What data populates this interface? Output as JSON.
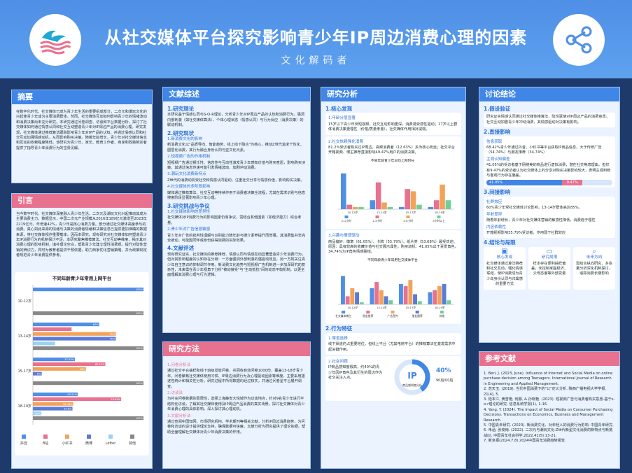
{
  "poster": {
    "title": "从社交媒体平台探究影响青少年IP周边消费心理的因素",
    "subtitle": "文化解码者"
  },
  "abstract": {
    "heading": "摘要",
    "text": "在数字化时代，社交媒体已成为青少年生活的重要组成部分，二次元和潮玩文化的兴起使青少年成为主要消费群体。然而，社交媒体互动如何影响青少年的情绪波动和消费决策尚未充分研究。本研究通过问卷调查、访谈和平台数据分析，探讨了社交媒体如何通过情感认同和社交互动塑造青少年对IP周边产品的消费心理。研究发现，社交媒体通过推荐算法跟踪影响青少年对IP产品的认知，并通过情感认同和社交互动加强情感动机，从而影响购买决策。随着年龄增长，青少年对社交媒体信息和互动的依赖程度降低。该研究为青少年、家长、教育工作者、商家和政策制定者提供了指导青少年消费行为的宝贵见解。"
  },
  "intro": {
    "heading": "引言",
    "text": "当今数字时代，社交媒体深度融入青少年生活。二次元及潮玩文化兴起推动其成为主要消费主力，数据显示，中国二次元产业规模从2016年189亿元激增至2023年2219亿元，年增速42%，青少年是核心消费力量。部分通过社交媒体高度参与的消费。真心如此来源的情绪与决策的消费者情绪和决策信息已提供更加准确的数据来源，将社交媒体视作重要载体，因而本研究。现有研究对社交媒体如何塑造青少年IP消费行为的机制探讨不足。本研究聚焦推荐算法、社交互动等维度，揭示其对消费心理的影响机制，填补理论空白，帮助青少年建立理性消费观，提升对隐性营销的辨识力，同时为教育者提供干预依据，助力商家优化营销策略，并为政策制定者规范青少年消费提供参考。",
    "chart_title": "不同年龄青少年常用上网平台"
  },
  "lit": {
    "heading": "文献综述",
    "s1": "1.研究理论",
    "s1_text": "本研究基于情感认同与S-O-R理论，分析青少年对IP周边产品的认知和消费行为。强调内部刺激（如社交媒体算法）、个体心理状态（情感认同）与行为反应（消费决策）的联动机制。",
    "s2": "2.研究现状",
    "s2a": "1.新消费文化的影响",
    "s2a_text": "新消费文化以\"品质导向、智能趋势、线上线下融合\"为核心，推动Z世代追求个性化、圈层化消费，其行为融合身份认同与亚文化元素。",
    "s2b": "2.短视频广告的作用机制",
    "s2b_text": "短视频广告通过娱乐性、信息性与互动性激发青少年感知价值与购买意愿，影响购买决策，其通过信息传递可能引发情绪波动，加剧冲动消费。",
    "s2c": "3.潮玩文化消费新特点",
    "s2c_text": "Z世代的消费动机受社交和情感认同驱动，注重社交分享与情感价值，影响购买决策。",
    "s2d": "4.社交媒体的多阶段影响",
    "s2d_text": "媒体通过推荐算法、社交互动等持续作用于消费者决策全流程，尤其在需求识别与信息搜索阶段显著影响青少年心理。",
    "s3": "3.研究挑战与争议",
    "s3a": "1.社交媒体影响的差异性",
    "s3a_text": "社交媒体对IP消费行为的影响因素仍有争议，需结合其他因素（如经济能力）综合考量。",
    "s3b": "2.青少年对广告信息敏感",
    "s3b_text": "青少年对广告的批判性理解与识别能力随年龄与媒介素养提升而增强，其消费集并非完全被动，可能因同伴或身份获得消费的实际效果。",
    "s4": "4.文献评述",
    "s4_text": "现有研究证实，社交媒体的推荐推荐、情感认同与情感互动显著塑造青少年消费行为，但对其影响程度的认知存在分歧：一方面强调外部刺激的强驱动效应，另一方则关注青少年自主意识的抑制调节作用。新消费文化趋势与短视频广告机制进一步加深研究的复杂性，未来需在青少年视角下分析\"被动接受\"与\"主动抵抗\"间的动态平衡机制，以更全面理解其消费心理与行为逻辑。"
  },
  "method": {
    "heading": "研究方法",
    "s1": "1.问卷分析法",
    "s1_text": "通过社交平台抽样和线下班级发放问卷，共回收有效问卷1000份，覆盖13-18岁青少年。问卷聚焦社交媒体使用习惯、IP周边消费行为及心理驱动因素等维度，主要采用描述性统计和相关性分析。研究过程中所得数据均经过核实，并通过问卷星平台展开调查。",
    "s2": "2.访谈法",
    "s2_text": "为补充问卷数据的局限性，选择上海静安大悦城作为访谈地点，针对9名青少年进行半结构化访谈，了解其社交媒体使用及IP周边产品消费的真实场景，探讨社交媒体对青少年消费心理的具体影响，深入探讨其心理动机。",
    "s3": "3.文献分析法",
    "s3_text": "通过查阅中国知网、市场研究机构、学术期刊等相关文献，分析IP周边消费趋势，为问卷和访谈的设计提供理论支持，确保数据可信度。文献分析为研究提供了理论依据，帮助全面理解社交媒体对青少年消费决策的作用。"
  },
  "analysis": {
    "heading": "研究分析",
    "s1": "1.核心发现",
    "s1a": "1.年龄分层显著",
    "s1a_text": "15岁以下青少年受短视频、社交互动影响更深，消费易受感性驱动；17岁以上群体消费决策更理性（价格/质量考量），社交媒体作用相对减弱。",
    "s1b": "2.社交依赖强化消费",
    "s1b_text": "81.2%受访者购买过IP周边，高频消费者（12.63%）多为核心粉丝；社交平台开箱视频、博主推荐直接影响49.47%用户的消费决策。",
    "chart1_title": "不同年龄青少年日均上网时长",
    "s1c": "3.兴趣与情感驱动",
    "s1c_text": "商品偏好：徽章（61.05%）、卡牌（55.79%）、纸片类（53.68%）最受欢迎。原因：具有较高的收藏价值与社交展示属性。购买动机：41.05%出于喜爱角色，34.74%为IP角色情感联结。",
    "chart2_title": "不同年龄青少年常用社交媒体平台",
    "s2": "2.行为特征",
    "s2a": "1.渠道选择",
    "s2a_text": "线下渠道仍占重要地位，但线上平台（尤其电商平台）的推荐算法在激发需求中起关键作用。",
    "s2b": "2.社会问题",
    "s2b_text": "IP商品感知度极高，约40%的青少年因IP角色及其衍生的周边作为社交关注入点。",
    "donut_label": "IP",
    "donut_caption": "商品感知度分析",
    "donut_value": "40%",
    "donut_note": "90后/00后"
  },
  "discussion": {
    "heading": "讨论结论",
    "s1": "1.假设验证",
    "s1_text": "研究证实情感认同通过社交媒体推算法，隐性驱使对IP周边产品的消费意愿。社交互动加剧青少年冲动消费，其情感驱动对决策有影响。",
    "s2": "2.直接影响",
    "s2a": "信息获取",
    "s2a_text": "68.42%青少年通过抖音、小红书等平台获取IP商品信息。大于传统广告（54.74%）与朋友推荐（34.74%）",
    "s2b": "主观认知偏差",
    "s2b_text": "41.05%的受访者基于网络美的商品进行虚拟消费，潜在社交焦虑理由。但仅有9.47%的受访者认为社交媒体上的分享对购买决策影响较大，表明主观判断与客观行为存在偏差。",
    "bar_a": "41.05%",
    "bar_b": "9.47%",
    "s3": "3.间接影响",
    "s3a": "社群效应",
    "s3a_text": "60%青少年受社交媒体讨论影响，13-14岁群体高达85%。",
    "s3b": "年龄差异",
    "s3b_text": "随着年龄增长，青少年对社交媒体营销的敏感性降低，消费趋于理性",
    "s3c": "内容依赖性",
    "s3c_text": "开箱视频影响35.79%受访者，作用弱于社群效应",
    "s4": "4.结论与局限",
    "cards": [
      {
        "title": "核心发现",
        "text": "社交媒体通过算法推荐和社交互动，强化情感联结，使IP消费成为青少年身份认同与归属感的重要方式"
      },
      {
        "title": "研究局限",
        "text": "样本存在便利抽样偏差，未控制家庭经济、父母态度等外部变量"
      },
      {
        "title": "未来方向",
        "text": "需结合纵向研究、多变量分析深化机制探讨，追踪消费长期影响"
      }
    ]
  },
  "refs": {
    "heading": "参考文献",
    "items": [
      "1. Beri, J. (2023, June). Influence of Internet and Social Media on online purchase decision among Teenagers. International Journal of Research in Engineering and Applied Management.",
      "2. 范天玉. (2019). 当代中国消费下的\"公\"定义分析. 陕西广播电视大学学报, 21(4), 5.",
      "3. 陆本江, 黄雪艳, 何娜, & 孙晓艳. (2023). 短视频广告与消费者购买意愿-基于s-o-r理论的研究. 信息系统学报(1), 1-16.",
      "4. Yang, Y. (2024). The Impact of Social Media on Consumer Purchasing Decisions. Transactions on Economics, Business and Management Research.",
      "5. 中国青年研究. (2023). 新消费文化、对年轻人的消费行为影响. 中国青年研究.",
      "6. 朱涵, 张俊雨. (2022). 二次元与潮玩文化:Z世代新型文化消费的新特点与新挑战[J]. 中国青年社会科学,2022,41(5):13-21.",
      "7. 新京报(2024.7.8) 2024中国青年消费趋势报告."
    ]
  },
  "chart_data": [
    {
      "type": "bar",
      "title": "不同年龄青少年常用上网平台",
      "categories": [
        "10-12岁",
        "13-14岁",
        "15-17岁",
        "18-19岁"
      ],
      "series": [
        {
          "name": "抖音",
          "color": "#4f8fe6",
          "values": [
            100,
            60,
            37.93,
            40.51
          ]
        },
        {
          "name": "B站",
          "color": "#e8718f",
          "values": [
            0,
            35,
            65.52,
            79.83
          ]
        },
        {
          "name": "小红书",
          "color": "#f2a35a",
          "values": [
            0,
            75,
            48,
            36.46
          ]
        },
        {
          "name": "微博",
          "color": "#5b7bd5",
          "values": [
            0,
            75,
            8,
            35.8
          ]
        },
        {
          "name": "Lofter",
          "color": "#9ad3f2",
          "values": [
            0,
            20,
            0,
            7.69
          ]
        },
        {
          "name": "其他",
          "color": "#888888",
          "values": [
            100,
            100,
            100,
            100
          ]
        }
      ],
      "value_labels": [
        [
          "100%",
          "",
          "",
          "",
          "",
          "100%"
        ],
        [
          "60%",
          "",
          "75%",
          "75%",
          "",
          "100%"
        ],
        [
          "37.93%",
          "65.52%",
          "48%",
          "8%",
          "",
          "100%"
        ],
        [
          "40.51%",
          "79.83%",
          "36.46%",
          "35.8%",
          "7.69%",
          "100%"
        ]
      ],
      "orientation": "horizontal",
      "legend": "bottom"
    },
    {
      "type": "bar",
      "title": "不同年龄青少年日均上网时长",
      "categories": [
        "10-12岁",
        "13-14岁",
        "15-17岁",
        "18-19岁"
      ],
      "series": [
        {
          "name": "0-1小时",
          "color": "#4f8fe6",
          "values": [
            80,
            20,
            5,
            5
          ]
        },
        {
          "name": "1-3小时",
          "color": "#e8718f",
          "values": [
            10,
            60,
            45,
            20
          ]
        },
        {
          "name": "3-5小时",
          "color": "#f2a35a",
          "values": [
            5,
            15,
            40,
            55
          ]
        },
        {
          "name": "5小时以上",
          "color": "#6fcf97",
          "values": [
            5,
            5,
            10,
            20
          ]
        }
      ],
      "orientation": "vertical",
      "legend": "bottom"
    },
    {
      "type": "bar",
      "title": "不同年龄青少年常用社交媒体平台",
      "categories": [
        "10-12岁",
        "13-14岁",
        "15-17岁",
        "18-19岁"
      ],
      "series": [
        {
          "name": "社交媒体博主",
          "color": "#4f8fe6",
          "values": [
            70,
            40,
            50,
            30
          ]
        },
        {
          "name": "朋友推荐",
          "color": "#e8718f",
          "values": [
            20,
            55,
            45,
            35
          ]
        },
        {
          "name": "广告宣传",
          "color": "#f2a35a",
          "values": [
            40,
            35,
            60,
            45
          ]
        },
        {
          "name": "朋友圈等",
          "color": "#5b7bd5",
          "values": [
            30,
            20,
            25,
            50
          ]
        },
        {
          "name": "其他",
          "color": "#6fcf97",
          "values": [
            5,
            10,
            8,
            10
          ]
        }
      ],
      "orientation": "vertical",
      "legend": "bottom"
    }
  ]
}
